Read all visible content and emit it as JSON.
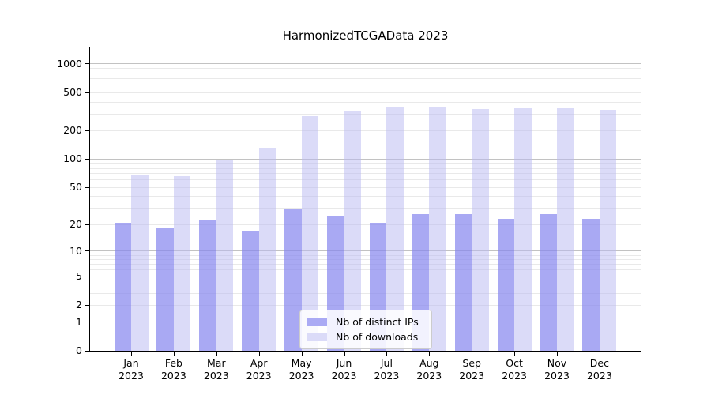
{
  "title": "HarmonizedTCGAData 2023",
  "legend": {
    "items": [
      {
        "label": "Nb of distinct IPs",
        "color": "#aaaaf4"
      },
      {
        "label": "Nb of downloads",
        "color": "#dbdbf8"
      }
    ]
  },
  "axes": {
    "y_ticks": [
      {
        "label": "1000",
        "value": 1000
      },
      {
        "label": "500",
        "value": 500
      },
      {
        "label": "200",
        "value": 200
      },
      {
        "label": "100",
        "value": 100
      },
      {
        "label": "50",
        "value": 50
      },
      {
        "label": "20",
        "value": 20
      },
      {
        "label": "10",
        "value": 10
      },
      {
        "label": "5",
        "value": 5
      },
      {
        "label": "2",
        "value": 2
      },
      {
        "label": "1",
        "value": 1
      },
      {
        "label": "0",
        "value": 0
      }
    ],
    "y_major_grid": [
      1,
      10,
      100,
      1000
    ],
    "y_minor_grid": [
      2,
      3,
      4,
      5,
      6,
      7,
      8,
      9,
      20,
      30,
      40,
      50,
      60,
      70,
      80,
      90,
      200,
      300,
      400,
      500,
      600,
      700,
      800,
      900
    ]
  },
  "chart_data": {
    "type": "bar",
    "title": "HarmonizedTCGAData 2023",
    "categories": [
      "Jan 2023",
      "Feb 2023",
      "Mar 2023",
      "Apr 2023",
      "May 2023",
      "Jun 2023",
      "Jul 2023",
      "Aug 2023",
      "Sep 2023",
      "Oct 2023",
      "Nov 2023",
      "Dec 2023"
    ],
    "series": [
      {
        "name": "Nb of distinct IPs",
        "color": "#aaaaf4",
        "values": [
          21,
          18,
          22,
          17,
          30,
          25,
          21,
          26,
          26,
          23,
          26,
          23
        ]
      },
      {
        "name": "Nb of downloads",
        "color": "#dbdbf8",
        "values": [
          68,
          66,
          97,
          133,
          285,
          320,
          347,
          358,
          336,
          342,
          345,
          330
        ]
      }
    ],
    "yscale": "log1p",
    "y_axis_tick_values": [
      0,
      1,
      2,
      5,
      10,
      20,
      50,
      100,
      200,
      500,
      1000
    ],
    "ylim": [
      0,
      1490
    ],
    "grid": true,
    "legend_position": "lower center"
  }
}
